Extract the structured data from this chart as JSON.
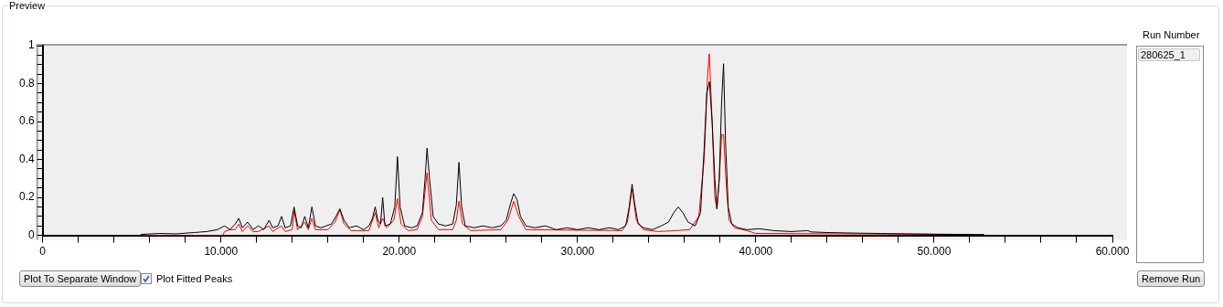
{
  "chart_data": {
    "type": "line",
    "annotations": [
      "Preview",
      "Run Number",
      "280625_1",
      "Plot To Separate Window",
      "Plot Fitted Peaks",
      "Remove Run"
    ],
    "xlim": [
      0,
      60
    ],
    "ylim": [
      0,
      1
    ],
    "xticks": [
      0,
      {
        "value": 2,
        "label": null
      },
      {
        "value": 4,
        "label": null
      },
      {
        "value": 6,
        "label": null
      },
      {
        "value": 8,
        "label": null
      },
      {
        "value": 10,
        "label": "10.000"
      },
      {
        "value": 12,
        "label": null
      },
      {
        "value": 14,
        "label": null
      },
      {
        "value": 16,
        "label": null
      },
      {
        "value": 18,
        "label": null
      },
      {
        "value": 20,
        "label": "20.000"
      },
      {
        "value": 22,
        "label": null
      },
      {
        "value": 24,
        "label": null
      },
      {
        "value": 26,
        "label": null
      },
      {
        "value": 28,
        "label": null
      },
      {
        "value": 30,
        "label": "30.000"
      },
      {
        "value": 32,
        "label": null
      },
      {
        "value": 34,
        "label": null
      },
      {
        "value": 36,
        "label": null
      },
      {
        "value": 38,
        "label": null
      },
      {
        "value": 40,
        "label": "40.000"
      },
      {
        "value": 42,
        "label": null
      },
      {
        "value": 44,
        "label": null
      },
      {
        "value": 46,
        "label": null
      },
      {
        "value": 48,
        "label": null
      },
      {
        "value": 50,
        "label": "50.000"
      },
      {
        "value": 52,
        "label": null
      },
      {
        "value": 54,
        "label": null
      },
      {
        "value": 56,
        "label": null
      },
      {
        "value": 58,
        "label": null
      },
      {
        "value": 60,
        "label": "60.000"
      }
    ],
    "yticks": [
      0,
      {
        "value": 0.05,
        "label": null
      },
      {
        "value": 0.1,
        "label": null
      },
      {
        "value": 0.15,
        "label": null
      },
      0.2,
      {
        "value": 0.25,
        "label": null
      },
      {
        "value": 0.3,
        "label": null
      },
      {
        "value": 0.35,
        "label": null
      },
      0.4,
      {
        "value": 0.45,
        "label": null
      },
      {
        "value": 0.5,
        "label": null
      },
      {
        "value": 0.55,
        "label": null
      },
      0.6,
      {
        "value": 0.65,
        "label": null
      },
      {
        "value": 0.7,
        "label": null
      },
      {
        "value": 0.75,
        "label": null
      },
      0.8,
      {
        "value": 0.85,
        "label": null
      },
      {
        "value": 0.9,
        "label": null
      },
      {
        "value": 0.95,
        "label": null
      },
      1
    ],
    "grid": false,
    "legend": false,
    "marker": "none",
    "line_style": "solid",
    "series": [
      {
        "color": "#000000",
        "x": [
          5.5,
          6.5,
          7.5,
          8.5,
          9.2,
          9.8,
          10.2,
          10.5,
          10.8,
          11,
          11.2,
          11.5,
          11.8,
          12.1,
          12.4,
          12.7,
          12.9,
          13.2,
          13.4,
          13.6,
          13.9,
          14.1,
          14.3,
          14.5,
          14.7,
          14.9,
          15.1,
          15.3,
          15.6,
          15.9,
          16.2,
          16.45,
          16.67,
          16.9,
          17.2,
          17.6,
          18,
          18.3,
          18.5,
          18.65,
          18.8,
          18.95,
          19.07,
          19.2,
          19.5,
          19.75,
          19.9,
          20.05,
          20.3,
          20.7,
          21,
          21.3,
          21.45,
          21.56,
          21.7,
          21.9,
          22.2,
          22.6,
          23,
          23.2,
          23.35,
          23.5,
          23.7,
          24.2,
          24.7,
          25.2,
          25.7,
          26,
          26.25,
          26.42,
          26.6,
          26.8,
          27.1,
          27.6,
          28.2,
          28.8,
          29.4,
          30,
          30.6,
          31.2,
          31.8,
          32.3,
          32.7,
          32.9,
          33.06,
          33.2,
          33.4,
          33.7,
          34.2,
          34.7,
          35.1,
          35.4,
          35.65,
          35.9,
          36.2,
          36.6,
          36.9,
          37.1,
          37.25,
          37.4,
          37.55,
          37.7,
          37.82,
          37.95,
          38.08,
          38.19,
          38.3,
          38.45,
          38.65,
          39,
          39.5,
          40.2,
          41,
          42,
          42.9,
          43.1,
          44,
          45.5,
          47,
          48.5,
          50,
          51.5,
          52.8
        ],
        "values": [
          0.005,
          0.01,
          0.008,
          0.015,
          0.02,
          0.03,
          0.05,
          0.03,
          0.06,
          0.09,
          0.04,
          0.07,
          0.03,
          0.05,
          0.03,
          0.08,
          0.04,
          0.05,
          0.1,
          0.04,
          0.05,
          0.15,
          0.05,
          0.04,
          0.1,
          0.04,
          0.15,
          0.05,
          0.04,
          0.05,
          0.06,
          0.1,
          0.14,
          0.08,
          0.04,
          0.05,
          0.03,
          0.05,
          0.09,
          0.15,
          0.08,
          0.06,
          0.2,
          0.05,
          0.06,
          0.15,
          0.415,
          0.15,
          0.05,
          0.04,
          0.05,
          0.12,
          0.3,
          0.46,
          0.3,
          0.1,
          0.06,
          0.05,
          0.06,
          0.16,
          0.385,
          0.15,
          0.05,
          0.04,
          0.05,
          0.04,
          0.05,
          0.08,
          0.17,
          0.22,
          0.19,
          0.1,
          0.05,
          0.04,
          0.05,
          0.03,
          0.04,
          0.03,
          0.04,
          0.03,
          0.04,
          0.03,
          0.05,
          0.15,
          0.27,
          0.17,
          0.06,
          0.04,
          0.03,
          0.05,
          0.07,
          0.12,
          0.15,
          0.12,
          0.07,
          0.05,
          0.12,
          0.45,
          0.75,
          0.81,
          0.6,
          0.3,
          0.14,
          0.3,
          0.7,
          0.905,
          0.5,
          0.15,
          0.06,
          0.04,
          0.03,
          0.035,
          0.025,
          0.02,
          0.025,
          0.018,
          0.015,
          0.012,
          0.01,
          0.008,
          0.006,
          0.005,
          0.004
        ]
      },
      {
        "color": "#ff0000",
        "x": [
          5.5,
          10.1,
          10.2,
          10.5,
          10.8,
          11,
          11.2,
          11.5,
          11.8,
          12.1,
          12.7,
          12.9,
          13.4,
          13.6,
          14,
          14.1,
          14.3,
          14.7,
          14.9,
          15.1,
          15.3,
          16,
          16.4,
          16.67,
          16.9,
          17.3,
          18.3,
          18.65,
          18.85,
          19.07,
          19.3,
          19.7,
          19.9,
          20.1,
          20.5,
          21,
          21.3,
          21.56,
          21.8,
          22.2,
          23,
          23.2,
          23.35,
          23.55,
          24,
          25.7,
          26.1,
          26.42,
          26.7,
          27.1,
          32.5,
          32.8,
          33.06,
          33.3,
          33.7,
          34.5,
          35.5,
          36.3,
          36.8,
          37.1,
          37.3,
          37.39,
          37.55,
          37.7,
          37.82,
          37.95,
          38.08,
          38.19,
          38.35,
          38.5,
          38.8,
          39.5,
          40,
          52.8
        ],
        "values": [
          0,
          0,
          0.02,
          0.03,
          0.03,
          0.06,
          0.02,
          0.05,
          0.02,
          0.02,
          0.05,
          0.02,
          0.05,
          0.02,
          0.03,
          0.13,
          0.03,
          0.07,
          0.03,
          0.09,
          0.03,
          0.03,
          0.07,
          0.135,
          0.06,
          0.025,
          0.025,
          0.12,
          0.04,
          0.09,
          0.04,
          0.08,
          0.195,
          0.06,
          0.025,
          0.03,
          0.1,
          0.33,
          0.08,
          0.03,
          0.03,
          0.08,
          0.18,
          0.06,
          0.025,
          0.03,
          0.08,
          0.18,
          0.1,
          0.03,
          0.025,
          0.07,
          0.245,
          0.08,
          0.03,
          0.02,
          0.025,
          0.03,
          0.1,
          0.4,
          0.85,
          0.957,
          0.6,
          0.2,
          0.14,
          0.3,
          0.53,
          0.53,
          0.25,
          0.08,
          0.04,
          0.025,
          0.01,
          0.005
        ]
      }
    ]
  }
}
